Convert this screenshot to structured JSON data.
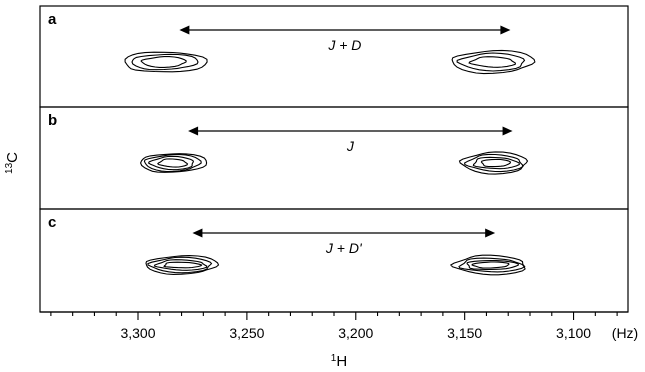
{
  "chart_data": {
    "type": "contour",
    "xlabel_sup": "1",
    "xlabel": "H",
    "ylabel_sup": "13",
    "ylabel": "C",
    "x_unit": "(Hz)",
    "x_reversed": true,
    "xlim": [
      3345,
      3075
    ],
    "x_ticks": [
      {
        "value": 3300,
        "label": "3,300"
      },
      {
        "value": 3250,
        "label": "3,250"
      },
      {
        "value": 3200,
        "label": "3,200"
      },
      {
        "value": 3150,
        "label": "3,150"
      },
      {
        "value": 3100,
        "label": "3,100"
      }
    ],
    "panels": [
      {
        "label": "a",
        "coupling_label": "J + D",
        "arrow": [
          3281,
          3129
        ],
        "peaks": [
          3288,
          3137
        ],
        "contour_style": "broad"
      },
      {
        "label": "b",
        "coupling_label": "J",
        "arrow": [
          3277,
          3128
        ],
        "peaks": [
          3284,
          3136
        ],
        "contour_style": "tight"
      },
      {
        "label": "c",
        "coupling_label": "J + D'",
        "arrow": [
          3275,
          3136
        ],
        "peaks": [
          3280,
          3138
        ],
        "contour_style": "flat"
      }
    ]
  }
}
